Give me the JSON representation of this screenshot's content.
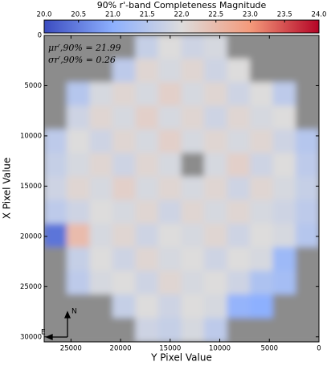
{
  "chart_data": {
    "type": "heatmap",
    "title": "90% r'-band Completeness Magnitude",
    "xlabel": "Y Pixel Value",
    "ylabel": "X Pixel Value",
    "annotations": [
      "μr′,90% = 21.99",
      "σr′,90% = 0.26"
    ],
    "compass": [
      "N",
      "E"
    ],
    "x": [
      26546,
      24238,
      21929,
      19621,
      17313,
      15004,
      12696,
      10388,
      8079,
      5771,
      3463,
      1154
    ],
    "y": [
      1173,
      3519,
      5865,
      8211,
      10557,
      12903,
      15249,
      17595,
      19941,
      22287,
      24633,
      26979,
      29325
    ],
    "z": [
      [
        null,
        null,
        null,
        null,
        21.7,
        22.0,
        21.8,
        21.9,
        null,
        null,
        null,
        null
      ],
      [
        null,
        null,
        null,
        21.6,
        22.1,
        21.9,
        22.1,
        21.8,
        22.0,
        null,
        null,
        null
      ],
      [
        null,
        21.5,
        21.9,
        22.1,
        21.9,
        22.2,
        21.9,
        22.1,
        21.8,
        22.0,
        21.6,
        null
      ],
      [
        null,
        21.8,
        22.1,
        21.9,
        22.2,
        21.9,
        22.1,
        21.8,
        22.1,
        21.9,
        22.0,
        null
      ],
      [
        21.6,
        22.0,
        21.8,
        22.1,
        21.9,
        22.2,
        21.9,
        22.1,
        21.9,
        22.1,
        21.8,
        21.5
      ],
      [
        21.7,
        21.9,
        22.1,
        21.8,
        22.1,
        21.9,
        null,
        21.9,
        22.2,
        21.8,
        22.0,
        21.6
      ],
      [
        21.8,
        22.1,
        21.9,
        22.2,
        21.9,
        22.1,
        21.9,
        22.1,
        21.8,
        22.1,
        21.9,
        21.7
      ],
      [
        21.6,
        21.8,
        22.0,
        21.9,
        22.1,
        21.8,
        22.1,
        21.9,
        22.1,
        21.9,
        21.8,
        21.6
      ],
      [
        20.4,
        22.5,
        21.9,
        22.1,
        21.8,
        22.0,
        21.9,
        22.1,
        21.8,
        22.0,
        21.9,
        21.5
      ],
      [
        null,
        21.7,
        22.0,
        21.8,
        22.1,
        21.9,
        22.0,
        21.8,
        22.0,
        21.9,
        21.2,
        null
      ],
      [
        null,
        21.6,
        21.9,
        22.0,
        21.8,
        22.1,
        21.9,
        22.0,
        21.8,
        21.4,
        21.3,
        null
      ],
      [
        null,
        null,
        null,
        21.7,
        22.0,
        21.8,
        22.0,
        21.9,
        21.1,
        21.0,
        null,
        null
      ],
      [
        null,
        null,
        null,
        null,
        21.8,
        21.7,
        21.9,
        21.6,
        null,
        null,
        null,
        null
      ]
    ],
    "xlim": [
      27700,
      0
    ],
    "ylim": [
      30500,
      0
    ],
    "xticks": [
      25000,
      20000,
      15000,
      10000,
      5000,
      0
    ],
    "yticks": [
      0,
      5000,
      10000,
      15000,
      20000,
      25000,
      30000
    ],
    "clim": [
      20,
      24
    ],
    "cticks": [
      {
        "value": 20,
        "label": "20.0"
      },
      {
        "value": 20.5,
        "label": "20.5"
      },
      {
        "value": 21,
        "label": "21.0"
      },
      {
        "value": 21.5,
        "label": "21.5"
      },
      {
        "value": 22,
        "label": "22.0"
      },
      {
        "value": 22.5,
        "label": "22.5"
      },
      {
        "value": 23,
        "label": "23.0"
      },
      {
        "value": 23.5,
        "label": "23.5"
      },
      {
        "value": 24,
        "label": "24.0"
      }
    ],
    "colormap": [
      "#3b4cc0",
      "#8db0fe",
      "#dddcdc",
      "#f49a7b",
      "#b40426"
    ],
    "null_color": "#8c8c8c"
  }
}
